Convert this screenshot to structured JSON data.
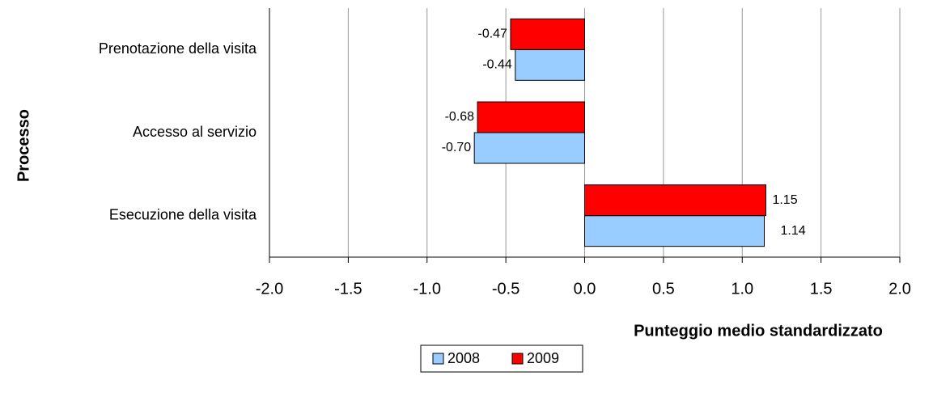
{
  "chart_data": {
    "type": "barh",
    "xlabel": "Punteggio medio standardizzato",
    "ylabel": "Processo",
    "categories": [
      "Prenotazione della visita",
      "Accesso al servizio",
      "Esecuzione della visita"
    ],
    "series": [
      {
        "name": "2008",
        "color": "#99ccff",
        "values": [
          -0.44,
          -0.7,
          1.14
        ],
        "value_labels": [
          "-0.44",
          "-0.70",
          "1.14"
        ]
      },
      {
        "name": "2009",
        "color": "#ff0000",
        "values": [
          -0.47,
          -0.68,
          1.15
        ],
        "value_labels": [
          "-0.47",
          "-0.68",
          "1.15"
        ]
      }
    ],
    "xlim": [
      -2,
      2
    ],
    "xticks": [
      {
        "value": -2,
        "label": "-2.0"
      },
      -1.5,
      {
        "value": -1,
        "label": "-1.0"
      },
      -0.5,
      {
        "value": 0,
        "label": "0.0"
      },
      0.5,
      {
        "value": 1,
        "label": "1.0"
      },
      1.5,
      {
        "value": 2,
        "label": "2.0"
      }
    ],
    "grid": true,
    "legend": "bottom"
  }
}
